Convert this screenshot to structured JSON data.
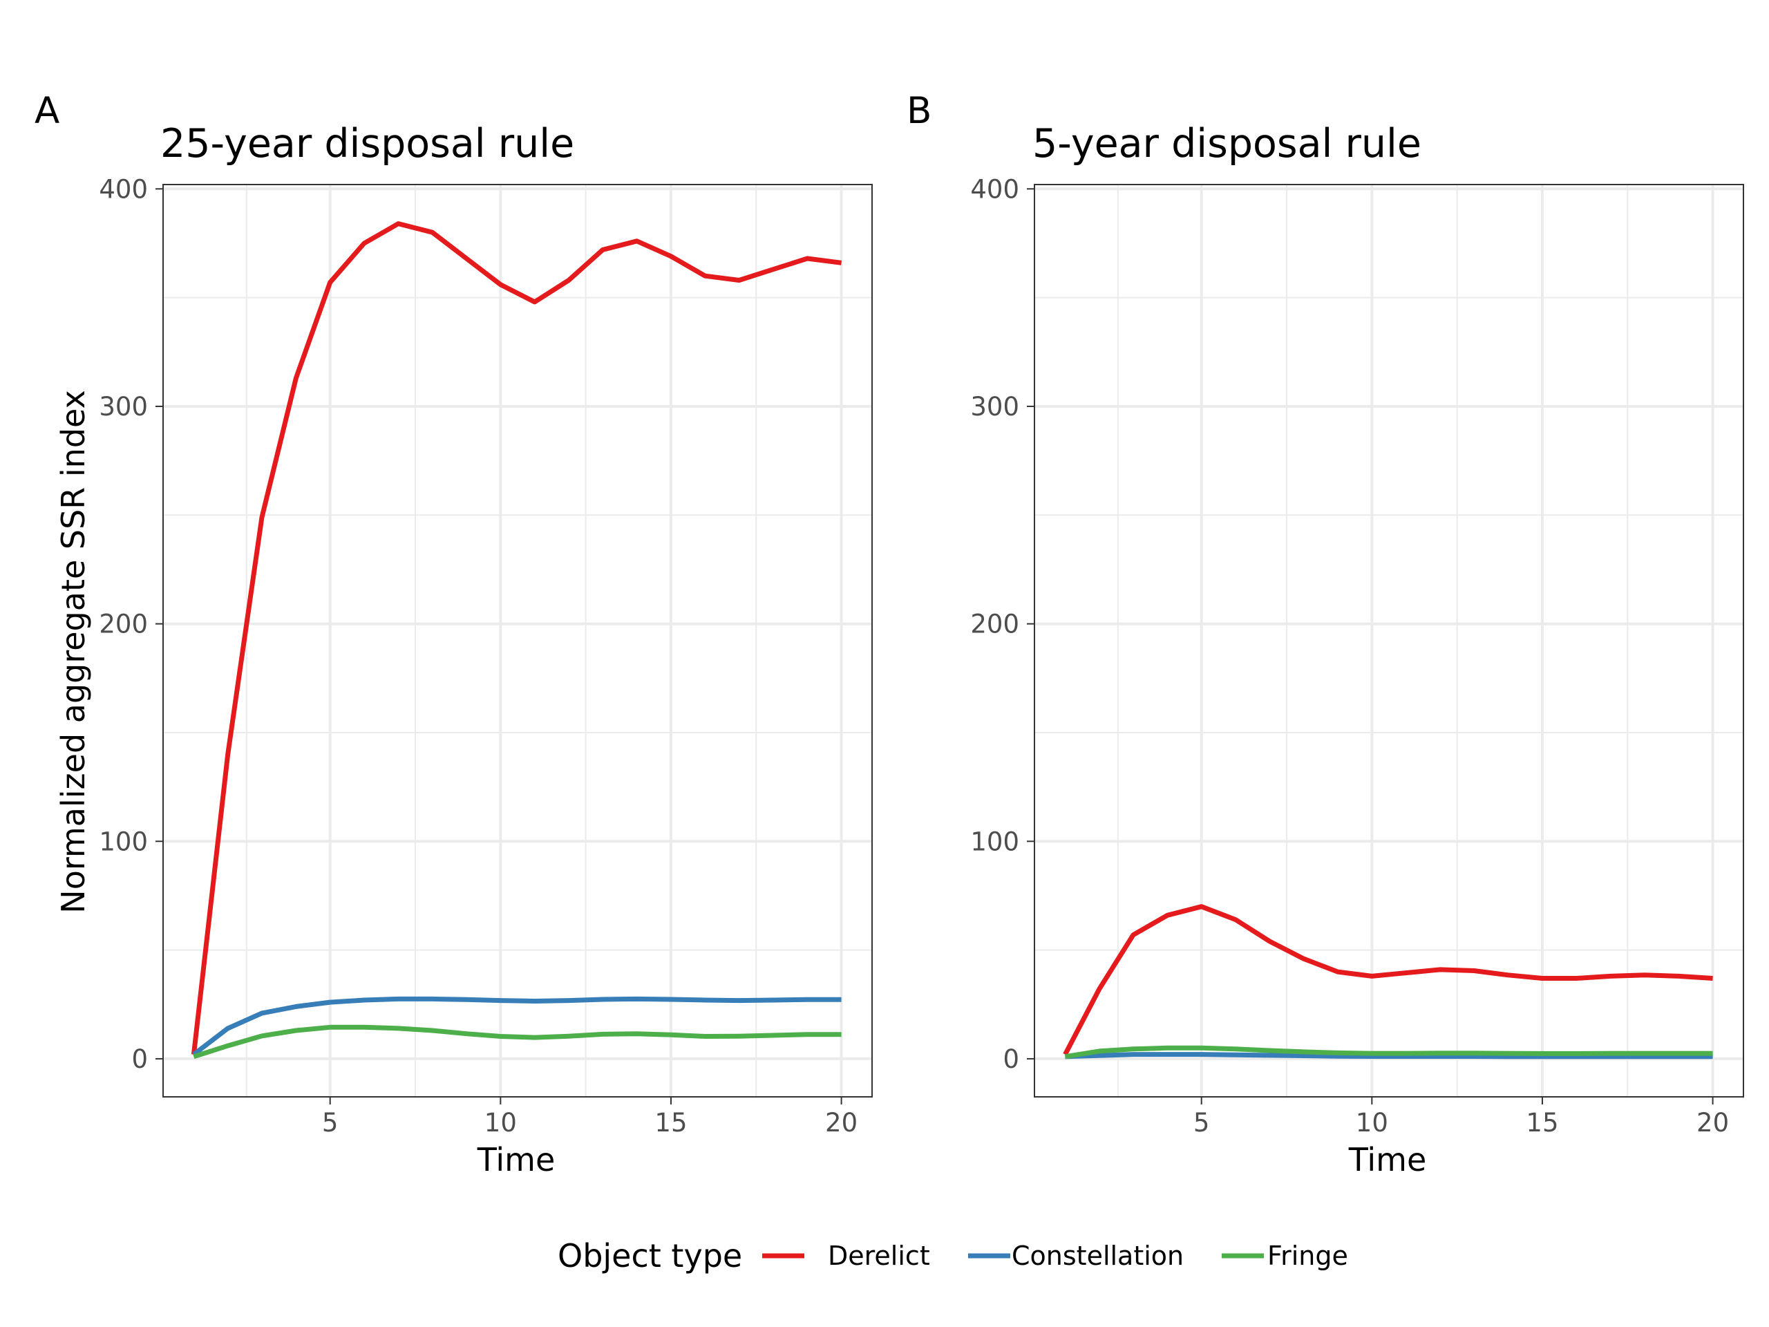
{
  "panels": [
    {
      "tag": "A"
    },
    {
      "tag": "B"
    }
  ],
  "colors": {
    "Derelict": "#E41A1C",
    "Constellation": "#377EB8",
    "Fringe": "#4DAF4A",
    "grid": "#ebebeb",
    "panel_border": "#333333",
    "tick_text": "#4d4d4d"
  },
  "legend": {
    "title": "Object type",
    "placement": "bottom",
    "entries": [
      "Derelict",
      "Constellation",
      "Fringe"
    ]
  },
  "chart_data": [
    {
      "type": "line",
      "title": "25-year disposal rule",
      "xlabel": "Time",
      "ylabel": "Normalized aggregate SSR index",
      "xlim": [
        0.1,
        20.9
      ],
      "ylim": [
        -17.5,
        402
      ],
      "xticks": [
        5,
        10,
        15,
        20
      ],
      "yticks": [
        0,
        100,
        200,
        300,
        400
      ],
      "grid": true,
      "x": [
        1,
        2,
        3,
        4,
        5,
        6,
        7,
        8,
        9,
        10,
        11,
        12,
        13,
        14,
        15,
        16,
        17,
        18,
        19,
        20
      ],
      "series": [
        {
          "name": "Derelict",
          "values": [
            2,
            140,
            249,
            313,
            357,
            375,
            384,
            380,
            368,
            356,
            348,
            358,
            372,
            376,
            369,
            360,
            358,
            363,
            368,
            366
          ]
        },
        {
          "name": "Constellation",
          "values": [
            2,
            14,
            21,
            24,
            26,
            27,
            27.5,
            27.5,
            27.2,
            26.8,
            26.5,
            26.8,
            27.3,
            27.5,
            27.3,
            27,
            26.8,
            27,
            27.2,
            27.2
          ]
        },
        {
          "name": "Fringe",
          "values": [
            1,
            6,
            10.5,
            13,
            14.5,
            14.5,
            14,
            13,
            11.5,
            10.3,
            9.8,
            10.4,
            11.3,
            11.5,
            11,
            10.3,
            10.4,
            10.8,
            11.2,
            11.2
          ]
        }
      ]
    },
    {
      "type": "line",
      "title": "5-year disposal rule",
      "xlabel": "Time",
      "ylabel": "",
      "xlim": [
        0.1,
        20.9
      ],
      "ylim": [
        -17.5,
        402
      ],
      "xticks": [
        5,
        10,
        15,
        20
      ],
      "yticks": [
        0,
        100,
        200,
        300,
        400
      ],
      "grid": true,
      "x": [
        1,
        2,
        3,
        4,
        5,
        6,
        7,
        8,
        9,
        10,
        11,
        12,
        13,
        14,
        15,
        16,
        17,
        18,
        19,
        20
      ],
      "series": [
        {
          "name": "Derelict",
          "values": [
            2,
            32,
            57,
            66,
            70,
            64,
            54,
            46,
            40,
            38,
            39.5,
            41,
            40.5,
            38.5,
            37,
            37,
            38,
            38.5,
            38,
            37
          ]
        },
        {
          "name": "Constellation",
          "values": [
            1,
            1.5,
            2,
            2,
            2,
            1.8,
            1.6,
            1.4,
            1.2,
            1.1,
            1.1,
            1.1,
            1.1,
            1,
            1,
            1,
            1,
            1,
            1,
            1
          ]
        },
        {
          "name": "Fringe",
          "values": [
            1,
            3.5,
            4.5,
            5,
            5,
            4.5,
            3.8,
            3.2,
            2.7,
            2.5,
            2.5,
            2.6,
            2.6,
            2.5,
            2.4,
            2.4,
            2.5,
            2.5,
            2.5,
            2.5
          ]
        }
      ]
    }
  ]
}
